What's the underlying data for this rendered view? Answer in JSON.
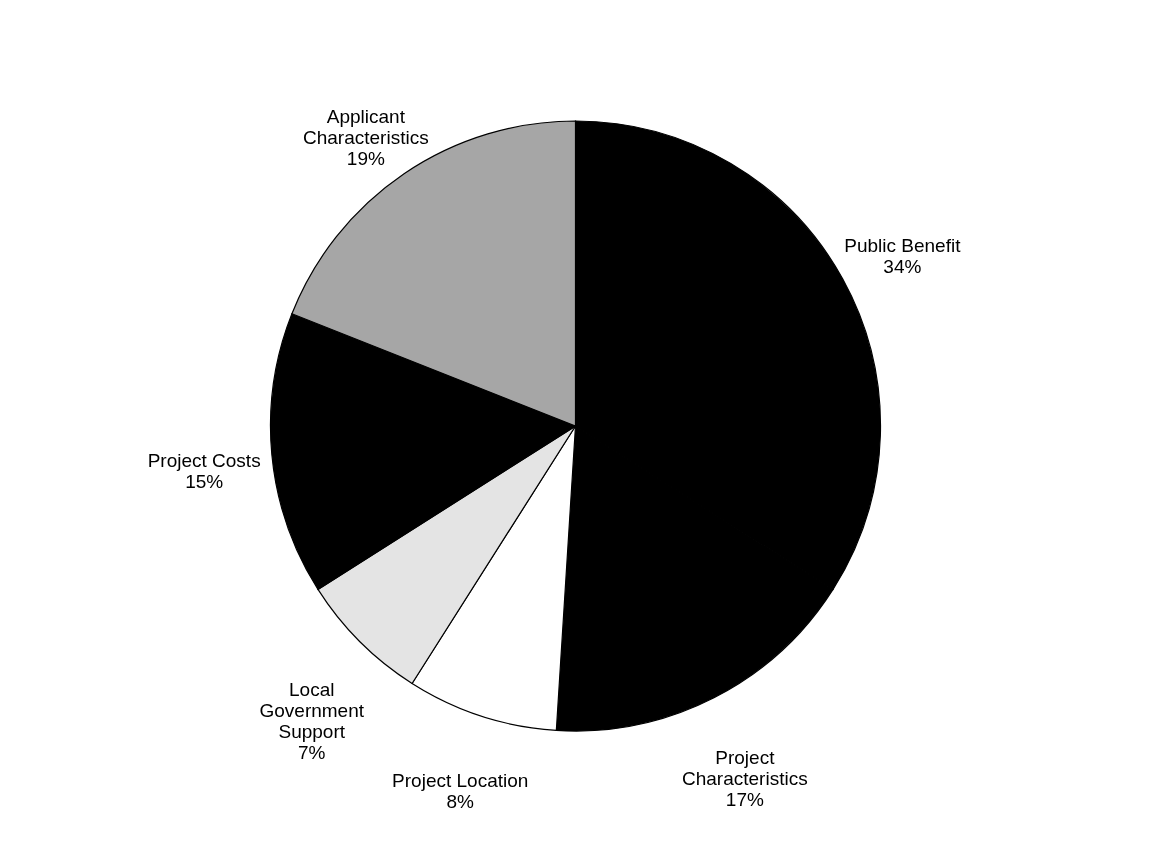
{
  "chart_data": {
    "type": "pie",
    "categories": [
      "Public Benefit",
      "Project\nCharacteristics",
      "Project Location",
      "Local\nGovernment\nSupport",
      "Project Costs",
      "Applicant\nCharacteristics"
    ],
    "values": [
      34,
      17,
      8,
      7,
      15,
      19
    ],
    "value_labels": [
      "34%",
      "17%",
      "8%",
      "7%",
      "15%",
      "19%"
    ],
    "colors": [
      "#000000",
      "#000000",
      "#ffffff",
      "#e4e4e4",
      "#000000",
      "#a6a6a6"
    ]
  }
}
